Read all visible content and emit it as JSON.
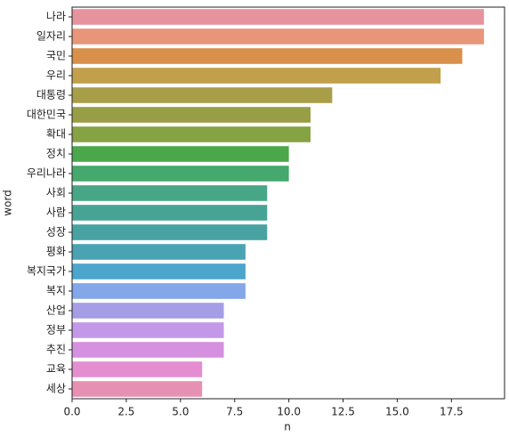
{
  "chart_data": {
    "type": "barh",
    "xlabel": "n",
    "ylabel": "word",
    "categories": [
      "나라",
      "일자리",
      "국민",
      "우리",
      "대통령",
      "대한민국",
      "확대",
      "정치",
      "우리나라",
      "사회",
      "사람",
      "성장",
      "평화",
      "복지국가",
      "복지",
      "산업",
      "정부",
      "추진",
      "교육",
      "세상"
    ],
    "values": [
      19,
      19,
      18,
      17,
      12,
      11,
      11,
      10,
      10,
      9,
      9,
      9,
      8,
      8,
      8,
      7,
      7,
      7,
      6,
      6
    ],
    "colors": [
      "#e7939e",
      "#e89579",
      "#d9904b",
      "#c29f4a",
      "#a99e48",
      "#979e45",
      "#85a342",
      "#4aa84a",
      "#45a86c",
      "#47a685",
      "#47a495",
      "#48a2a2",
      "#4aa3b3",
      "#4ca5cc",
      "#83a7e8",
      "#a59ee6",
      "#c498e8",
      "#d590e0",
      "#e48ed1",
      "#e691b4"
    ],
    "xlim": [
      0,
      19.95
    ],
    "xticks": [
      {
        "value": 0,
        "label": "0.0"
      },
      {
        "value": 2.5,
        "label": "2.5"
      },
      {
        "value": 5,
        "label": "5.0"
      },
      {
        "value": 7.5,
        "label": "7.5"
      },
      {
        "value": 10,
        "label": "10.0"
      },
      {
        "value": 12.5,
        "label": "12.5"
      },
      {
        "value": 15,
        "label": "15.0"
      },
      {
        "value": 17.5,
        "label": "17.5"
      }
    ]
  }
}
